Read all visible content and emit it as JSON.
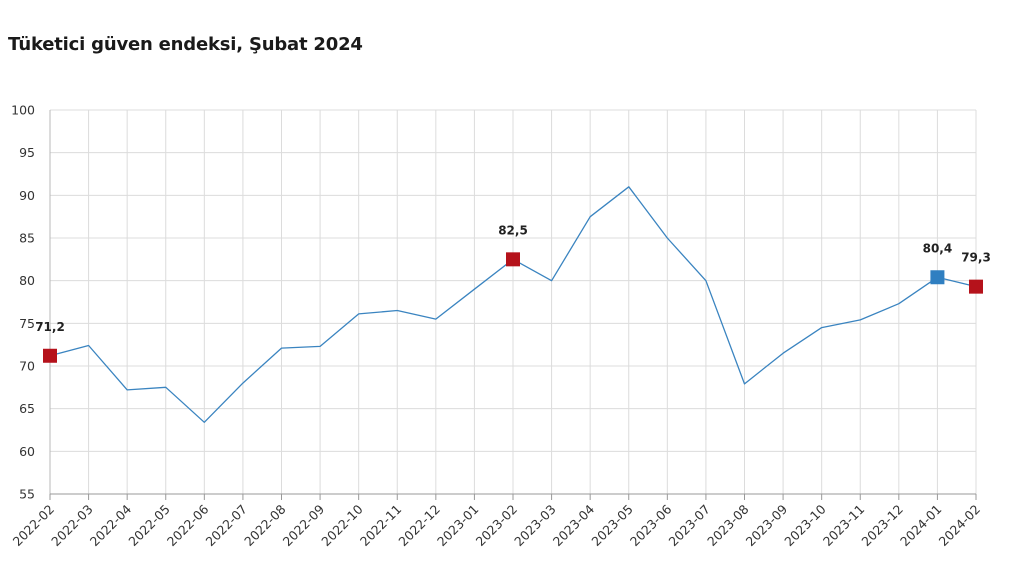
{
  "title": "Tüketici güven endeksi, Şubat 2024",
  "chart_data": {
    "type": "line",
    "title": "Tüketici güven endeksi, Şubat 2024",
    "xlabel": "",
    "ylabel": "",
    "ylim": [
      55,
      100
    ],
    "yticks": [
      55,
      60,
      65,
      70,
      75,
      80,
      85,
      90,
      95,
      100
    ],
    "grid": true,
    "categories": [
      "2022-02",
      "2022-03",
      "2022-04",
      "2022-05",
      "2022-06",
      "2022-07",
      "2022-08",
      "2022-09",
      "2022-10",
      "2022-11",
      "2022-12",
      "2023-01",
      "2023-02",
      "2023-03",
      "2023-04",
      "2023-05",
      "2023-06",
      "2023-07",
      "2023-08",
      "2023-09",
      "2023-10",
      "2023-11",
      "2023-12",
      "2024-01",
      "2024-02"
    ],
    "series": [
      {
        "values": [
          71.2,
          72.4,
          67.2,
          67.5,
          63.4,
          68.0,
          72.1,
          72.3,
          76.1,
          76.5,
          75.5,
          79.0,
          82.5,
          80.0,
          87.5,
          91.0,
          85.0,
          80.0,
          67.9,
          71.5,
          74.5,
          75.4,
          77.3,
          80.4,
          79.3
        ],
        "color": "#3a84c0"
      }
    ],
    "highlights": [
      {
        "index": 0,
        "label": "71,2",
        "color": "#b5121b"
      },
      {
        "index": 12,
        "label": "82,5",
        "color": "#b5121b"
      },
      {
        "index": 23,
        "label": "80,4",
        "color": "#2f7fc1"
      },
      {
        "index": 24,
        "label": "79,3",
        "color": "#b5121b"
      }
    ]
  }
}
